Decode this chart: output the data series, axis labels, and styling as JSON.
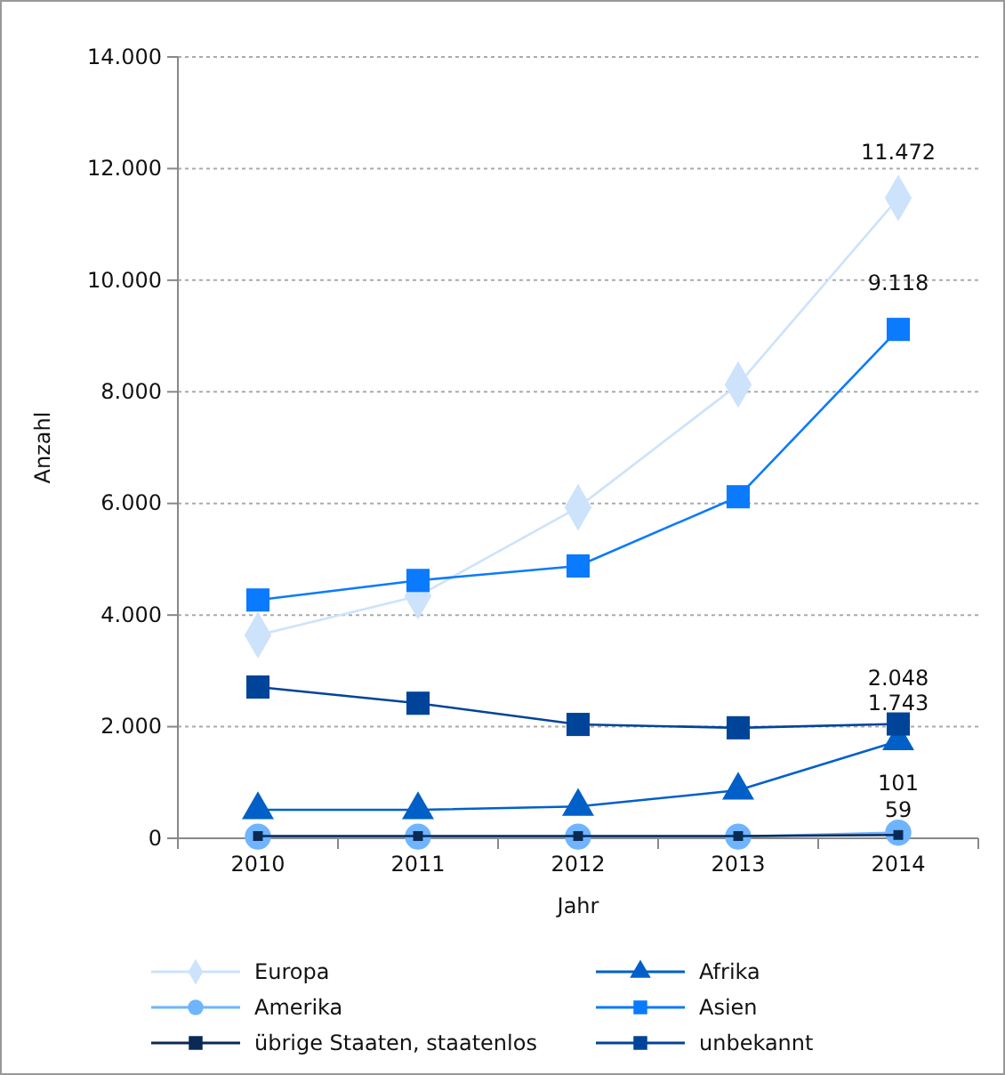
{
  "chart_data": {
    "type": "line",
    "xlabel": "Jahr",
    "ylabel": "Anzahl",
    "categories": [
      "2010",
      "2011",
      "2012",
      "2013",
      "2014"
    ],
    "ylim": [
      0,
      14000
    ],
    "yticks": [
      {
        "value": 0,
        "label": "0"
      },
      {
        "value": 2000,
        "label": "2.000"
      },
      {
        "value": 4000,
        "label": "4.000"
      },
      {
        "value": 6000,
        "label": "6.000"
      },
      {
        "value": 8000,
        "label": "8.000"
      },
      {
        "value": 10000,
        "label": "10.000"
      },
      {
        "value": 12000,
        "label": "12.000"
      },
      {
        "value": 14000,
        "label": "14.000"
      }
    ],
    "grid": "y",
    "legend": "bottom",
    "series": [
      {
        "name": "Europa",
        "color": "#cce3fb",
        "marker": "diamond",
        "values": [
          3640,
          4340,
          5930,
          8130,
          11472
        ],
        "value_labels": [
          null,
          null,
          null,
          null,
          "11.472"
        ]
      },
      {
        "name": "Afrika",
        "color": "#0060c8",
        "marker": "triangle",
        "values": [
          510,
          510,
          570,
          860,
          1743
        ],
        "value_labels": [
          null,
          null,
          null,
          null,
          "1.743"
        ]
      },
      {
        "name": "Amerika",
        "color": "#6eb4ff",
        "marker": "circle",
        "values": [
          30,
          30,
          30,
          30,
          101
        ],
        "value_labels": [
          null,
          null,
          null,
          null,
          "101"
        ]
      },
      {
        "name": "Asien",
        "color": "#0a7aff",
        "marker": "square",
        "values": [
          4270,
          4620,
          4880,
          6120,
          9118
        ],
        "value_labels": [
          null,
          null,
          null,
          null,
          "9.118"
        ]
      },
      {
        "name": "übrige Staaten, staatenlos",
        "color": "#0a2a55",
        "marker": "square",
        "values": [
          40,
          40,
          40,
          40,
          59
        ],
        "value_labels": [
          null,
          null,
          null,
          null,
          "59"
        ]
      },
      {
        "name": "unbekannt",
        "color": "#004499",
        "marker": "square",
        "values": [
          2710,
          2420,
          2040,
          1980,
          2048
        ],
        "value_labels": [
          null,
          null,
          null,
          null,
          "2.048"
        ]
      }
    ]
  }
}
